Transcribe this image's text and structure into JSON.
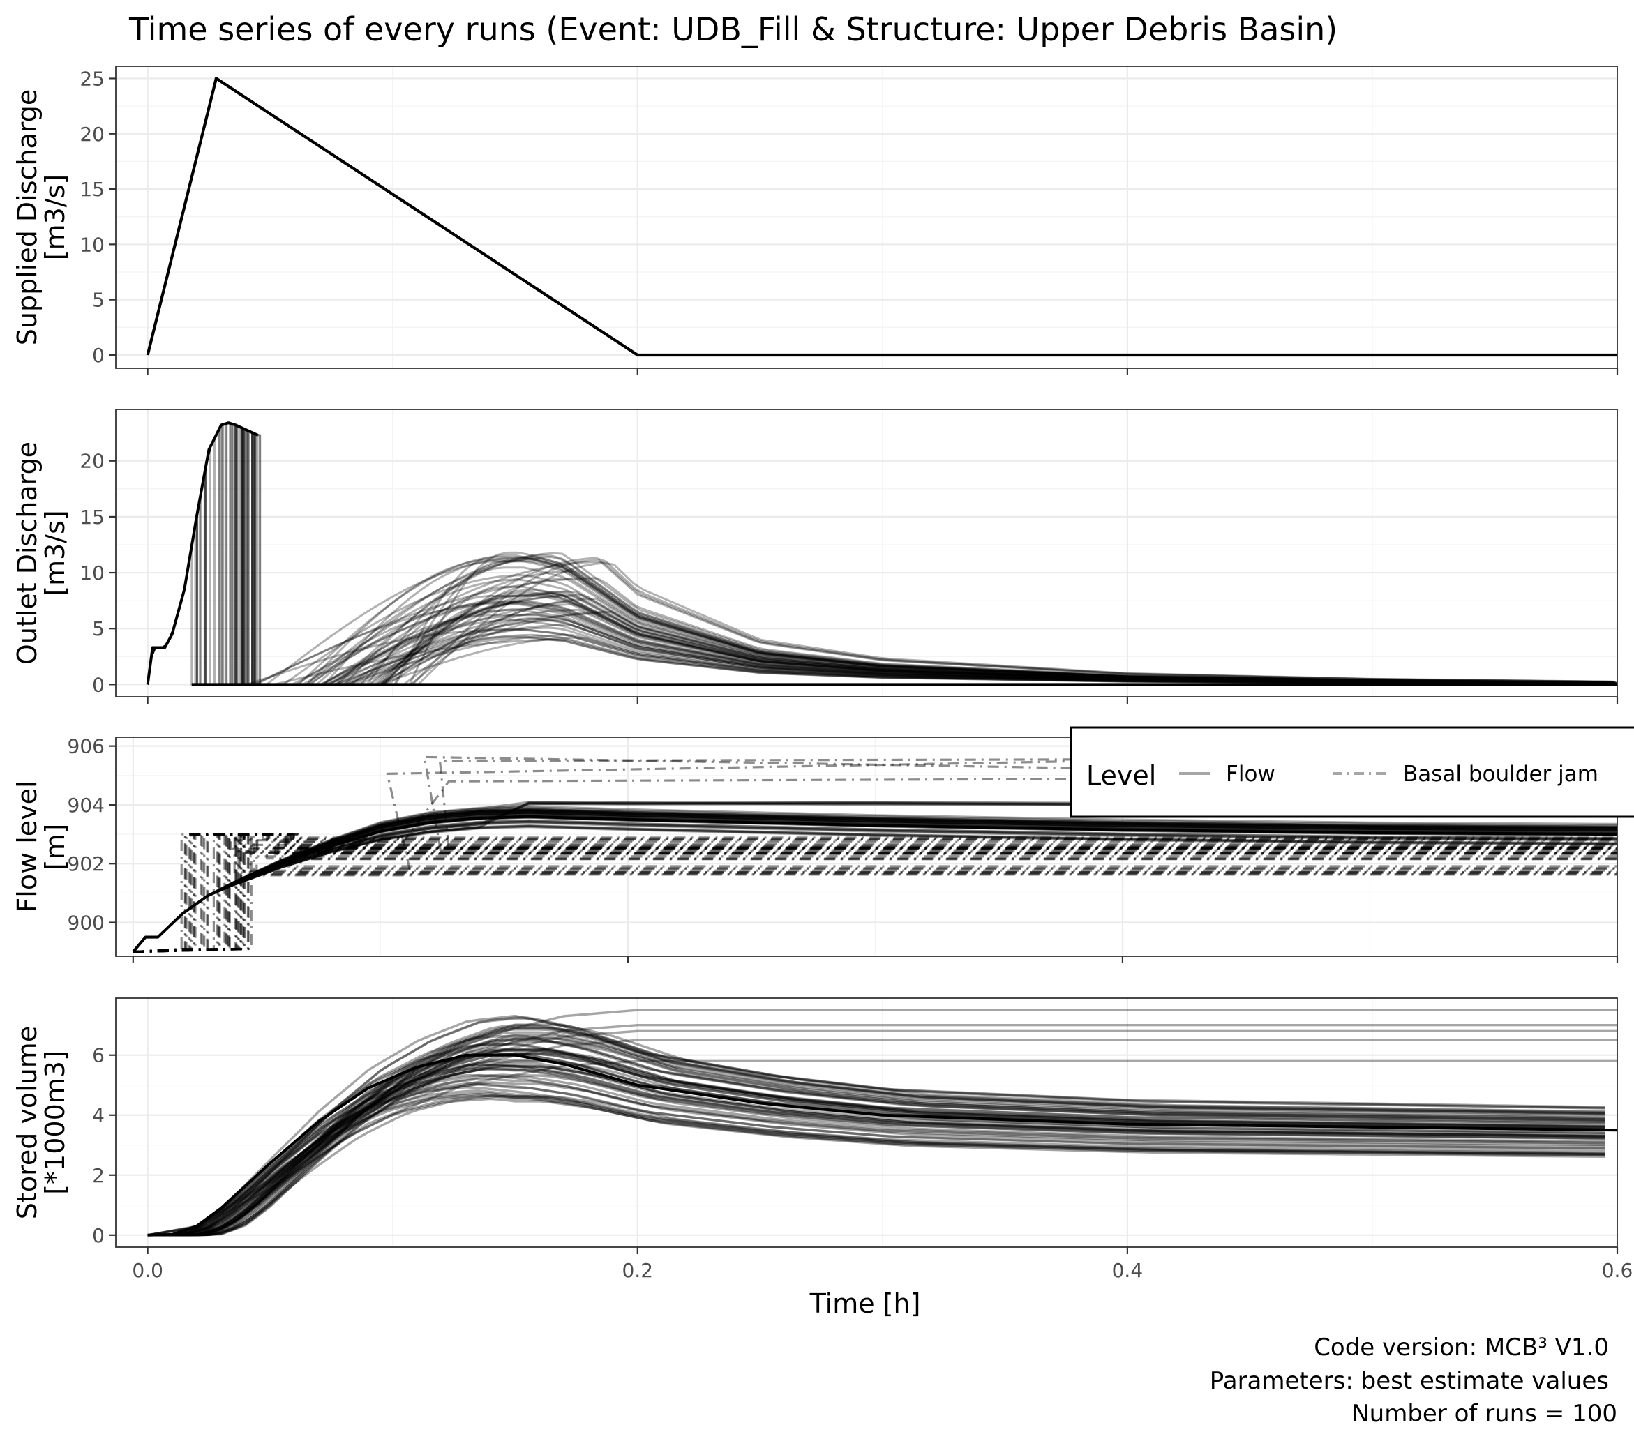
{
  "figure": {
    "title": "Time series of every runs (Event: UDB_Fill & Structure: Upper Debris Basin)",
    "xlabel": "Time [h]",
    "caption": [
      "Code version: MCB³ V1.0",
      "Parameters:  best estimate values",
      "Number of runs = 100"
    ],
    "line_color": "#000000"
  },
  "chart_data": [
    {
      "type": "line",
      "panel": "supplied-discharge",
      "ylabel": [
        "Supplied Discharge",
        "[m3/s]"
      ],
      "xlim": [
        -0.013,
        0.6
      ],
      "ylim": [
        -1.2,
        26.1
      ],
      "xticks": [
        0.0,
        0.2,
        0.4,
        0.6
      ],
      "yticks": [
        0,
        5,
        10,
        15,
        20,
        25
      ],
      "yticklabels": [
        "0",
        "5",
        "10",
        "15",
        "20",
        "25"
      ],
      "series": [
        {
          "x": [
            0.0,
            0.028,
            0.2,
            0.6
          ],
          "y": [
            0,
            25,
            0,
            0
          ]
        }
      ]
    },
    {
      "type": "line",
      "panel": "outlet-discharge",
      "ylabel": [
        "Outlet Discharge",
        "[m3/s]"
      ],
      "xlim": [
        -0.013,
        0.6
      ],
      "ylim": [
        -1.1,
        24.6
      ],
      "xticks": [
        0.0,
        0.2,
        0.4,
        0.6
      ],
      "yticks": [
        0,
        5,
        10,
        15,
        20
      ],
      "yticklabels": [
        "0",
        "5",
        "10",
        "15",
        "20"
      ],
      "series": [
        {
          "name_hidden": "run ensemble",
          "runs": 100,
          "x": [
            0.0,
            0.002,
            0.007,
            0.01,
            0.015,
            0.02,
            0.025,
            0.03,
            0.033,
            0.036,
            0.04,
            0.045
          ],
          "y": [
            0,
            3.3,
            3.3,
            4.5,
            8.5,
            15,
            21,
            23.2,
            23.4,
            23.2,
            22.8,
            22.3
          ]
        },
        {
          "name_hidden": "refill peaks",
          "x": [
            0.09,
            0.11,
            0.13,
            0.15,
            0.17,
            0.2,
            0.25,
            0.3,
            0.4,
            0.5,
            0.6
          ],
          "y": [
            0,
            6,
            9,
            10,
            9,
            5.2,
            2.4,
            1.4,
            0.6,
            0.3,
            0.15
          ]
        }
      ]
    },
    {
      "type": "line",
      "panel": "flow-level",
      "ylabel": [
        "Flow level",
        "[m]"
      ],
      "xlim": [
        -0.007,
        0.6
      ],
      "ylim": [
        898.85,
        906.3
      ],
      "xticks": [
        0.0,
        0.2,
        0.4,
        0.6
      ],
      "yticks": [
        900,
        902,
        904,
        906
      ],
      "yticklabels": [
        "900",
        "902",
        "904",
        "906"
      ],
      "legend": {
        "title": "Level",
        "position": "top-right",
        "entries": [
          {
            "label": "Flow",
            "linestyle": "solid"
          },
          {
            "label": "Basal boulder jam",
            "linestyle": "dashdot"
          }
        ]
      },
      "series": [
        {
          "name": "Flow",
          "x": [
            0.0,
            0.005,
            0.01,
            0.015,
            0.02,
            0.03,
            0.04,
            0.06,
            0.08,
            0.1,
            0.12,
            0.14,
            0.16,
            0.2,
            0.3,
            0.4,
            0.5,
            0.6
          ],
          "y": [
            899.0,
            899.5,
            899.5,
            899.9,
            900.3,
            900.9,
            901.3,
            902.0,
            902.6,
            903.1,
            903.4,
            903.55,
            903.6,
            903.5,
            903.3,
            903.15,
            903.05,
            903.0
          ]
        },
        {
          "name": "Basal boulder jam",
          "x": [
            0.0,
            0.01,
            0.018,
            0.018,
            0.05,
            0.05,
            0.1,
            0.12,
            0.6
          ],
          "y": [
            899.0,
            899.1,
            899.1,
            903.0,
            903.0,
            902.0,
            902.3,
            902.5,
            902.1
          ]
        }
      ]
    },
    {
      "type": "line",
      "panel": "stored-volume",
      "ylabel": [
        "Stored volume",
        "[*1000m3]"
      ],
      "xlim": [
        -0.013,
        0.6
      ],
      "ylim": [
        -0.4,
        7.9
      ],
      "xticks": [
        0.0,
        0.2,
        0.4,
        0.6
      ],
      "xticklabels": [
        "0.0",
        "0.2",
        "0.4",
        "0.6"
      ],
      "yticks": [
        0,
        2,
        4,
        6
      ],
      "yticklabels": [
        "0",
        "2",
        "4",
        "6"
      ],
      "series": [
        {
          "name_hidden": "median run",
          "x": [
            0.0,
            0.01,
            0.02,
            0.03,
            0.05,
            0.07,
            0.09,
            0.11,
            0.13,
            0.15,
            0.17,
            0.2,
            0.25,
            0.3,
            0.4,
            0.5,
            0.6
          ],
          "y": [
            0,
            0.02,
            0.3,
            0.9,
            2.4,
            3.8,
            4.9,
            5.6,
            6.0,
            6.0,
            5.7,
            5.0,
            4.4,
            4.0,
            3.7,
            3.6,
            3.5
          ]
        },
        {
          "name_hidden": "retained high runs",
          "x": [
            0.0,
            0.02,
            0.05,
            0.09,
            0.13,
            0.17,
            0.2,
            0.6
          ],
          "y": [
            0,
            0.3,
            2.0,
            4.8,
            6.5,
            7.3,
            7.5,
            7.5
          ]
        }
      ]
    }
  ]
}
